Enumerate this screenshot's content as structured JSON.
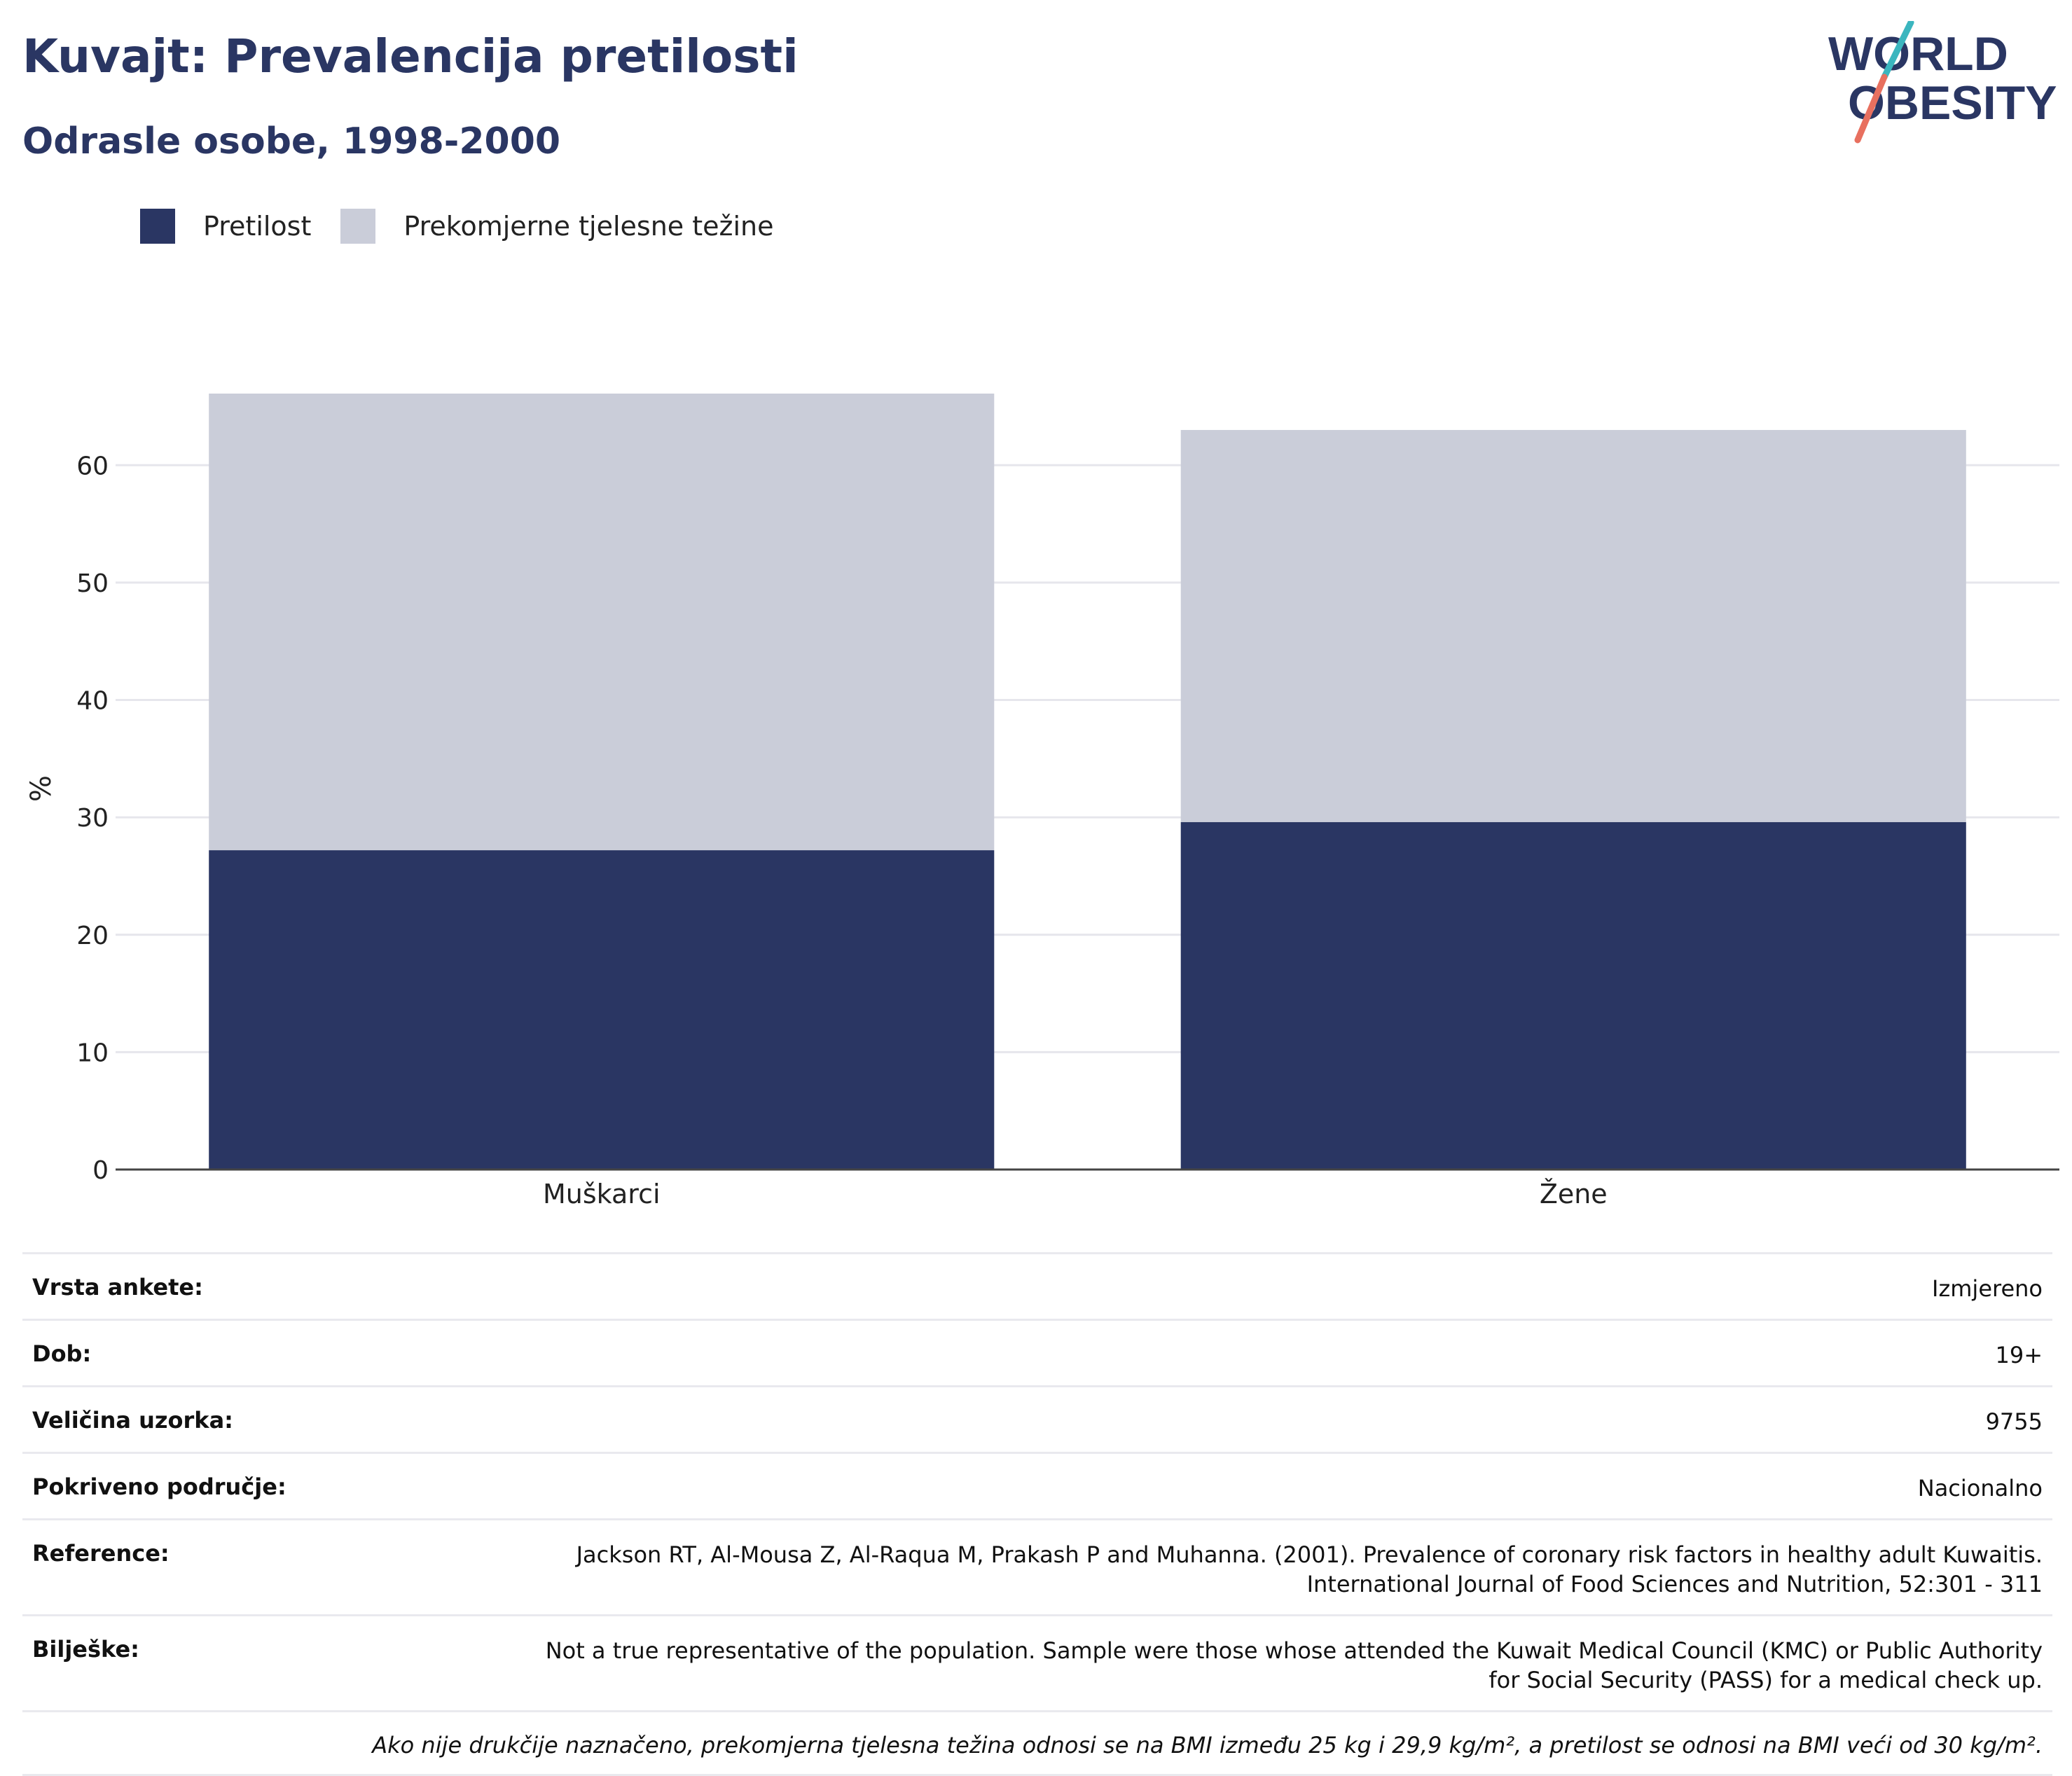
{
  "header": {
    "title": "Kuvajt: Prevalencija pretilosti",
    "subtitle": "Odrasle osobe, 1998-2000",
    "logo_line1": "WORLD",
    "logo_line2": "OBESITY"
  },
  "legend": {
    "items": [
      {
        "label": "Pretilost",
        "color": "#2a3663"
      },
      {
        "label": "Prekomjerne tjelesne težine",
        "color": "#cacdd9"
      }
    ]
  },
  "chart_data": {
    "type": "bar",
    "stacked": true,
    "categories": [
      "Muškarci",
      "Žene"
    ],
    "series": [
      {
        "name": "Pretilost",
        "color": "#2a3663",
        "values": [
          27.2,
          29.6
        ]
      },
      {
        "name": "Prekomjerne tjelesne težine",
        "color": "#cacdd9",
        "values": [
          38.9,
          33.4
        ]
      }
    ],
    "ylabel": "%",
    "xlabel": "",
    "ylim": [
      0,
      66.1
    ],
    "yticks": [
      0,
      10,
      20,
      30,
      40,
      50,
      60
    ],
    "grid": true,
    "legend_position": "top-left"
  },
  "meta": {
    "survey_type": {
      "label": "Vrsta ankete:",
      "value": "Izmjereno"
    },
    "age": {
      "label": "Dob:",
      "value": "19+"
    },
    "sample_size": {
      "label": "Veličina uzorka:",
      "value": "9755"
    },
    "coverage": {
      "label": "Pokriveno područje:",
      "value": "Nacionalno"
    },
    "reference": {
      "label": "Reference:",
      "line1": "Jackson RT, Al-Mousa Z, Al-Raqua M, Prakash P and Muhanna. (2001). Prevalence of coronary risk factors in healthy adult Kuwaitis.",
      "line2": "International Journal of Food Sciences and Nutrition, 52:301 - 311"
    },
    "notes": {
      "label": "Bilješke:",
      "line1": "Not a true representative of the population. Sample were those whose attended the Kuwait Medical Council (KMC) or Public Authority",
      "line2": "for Social Security (PASS) for a medical check up."
    },
    "footnote": "Ako nije drukčije naznačeno, prekomjerna tjelesna težina odnosi se na BMI između 25 kg i 29,9 kg/m², a pretilost se odnosi na BMI veći od 30 kg/m²."
  }
}
